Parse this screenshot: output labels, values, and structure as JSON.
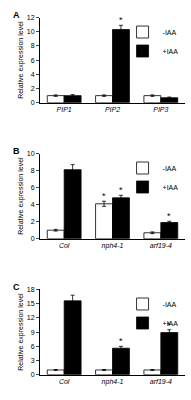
{
  "chart_data": [
    {
      "type": "bar",
      "title": "A",
      "y_label": "Relative expression level",
      "categories": [
        "PIP1",
        "PIP2",
        "PIP3"
      ],
      "series": [
        {
          "name": "-IAA",
          "color": "#ffffff",
          "values": [
            1.0,
            1.0,
            1.0
          ],
          "error": [
            0.1,
            0.1,
            0.1
          ]
        },
        {
          "name": "+IAA",
          "color": "#000000",
          "values": [
            1.0,
            10.3,
            0.7
          ],
          "error": [
            0.15,
            0.6,
            0.1
          ]
        }
      ],
      "annotations": [
        {
          "text": "*",
          "category": "PIP2",
          "series": "+IAA"
        }
      ],
      "ylim": [
        0,
        12
      ],
      "yticks": [
        0,
        2,
        4,
        6,
        8,
        10,
        12
      ],
      "grid": false,
      "legend": "upper right"
    },
    {
      "type": "bar",
      "title": "B",
      "y_label": "Relative expression level",
      "categories": [
        "Col",
        "nph4-1",
        "arf19-4"
      ],
      "series": [
        {
          "name": "-IAA",
          "color": "#ffffff",
          "values": [
            1.0,
            4.1,
            0.7
          ],
          "error": [
            0.1,
            0.3,
            0.1
          ]
        },
        {
          "name": "+IAA",
          "color": "#000000",
          "values": [
            8.1,
            4.8,
            1.9
          ],
          "error": [
            0.6,
            0.3,
            0.15
          ]
        }
      ],
      "annotations": [
        {
          "text": "*",
          "category": "nph4-1",
          "series": "-IAA"
        },
        {
          "text": "*",
          "category": "nph4-1",
          "series": "+IAA"
        },
        {
          "text": "*",
          "category": "arf19-4",
          "series": "+IAA"
        }
      ],
      "ylim": [
        0,
        10
      ],
      "yticks": [
        0,
        2,
        4,
        6,
        8,
        10
      ],
      "grid": false,
      "legend": "upper right"
    },
    {
      "type": "bar",
      "title": "C",
      "y_label": "Relative expression level",
      "categories": [
        "Col",
        "nph4-1",
        "arf19-4"
      ],
      "series": [
        {
          "name": "-IAA",
          "color": "#ffffff",
          "values": [
            1.0,
            1.0,
            1.0
          ],
          "error": [
            0.1,
            0.1,
            0.1
          ]
        },
        {
          "name": "+IAA",
          "color": "#000000",
          "values": [
            15.6,
            5.6,
            8.9
          ],
          "error": [
            1.2,
            0.4,
            0.6
          ]
        }
      ],
      "annotations": [
        {
          "text": "*",
          "category": "nph4-1",
          "series": "+IAA"
        },
        {
          "text": "*",
          "category": "arf19-4",
          "series": "+IAA"
        }
      ],
      "ylim": [
        0,
        18
      ],
      "yticks": [
        0,
        3,
        6,
        9,
        12,
        15,
        18
      ],
      "grid": false,
      "legend": "upper right"
    }
  ]
}
